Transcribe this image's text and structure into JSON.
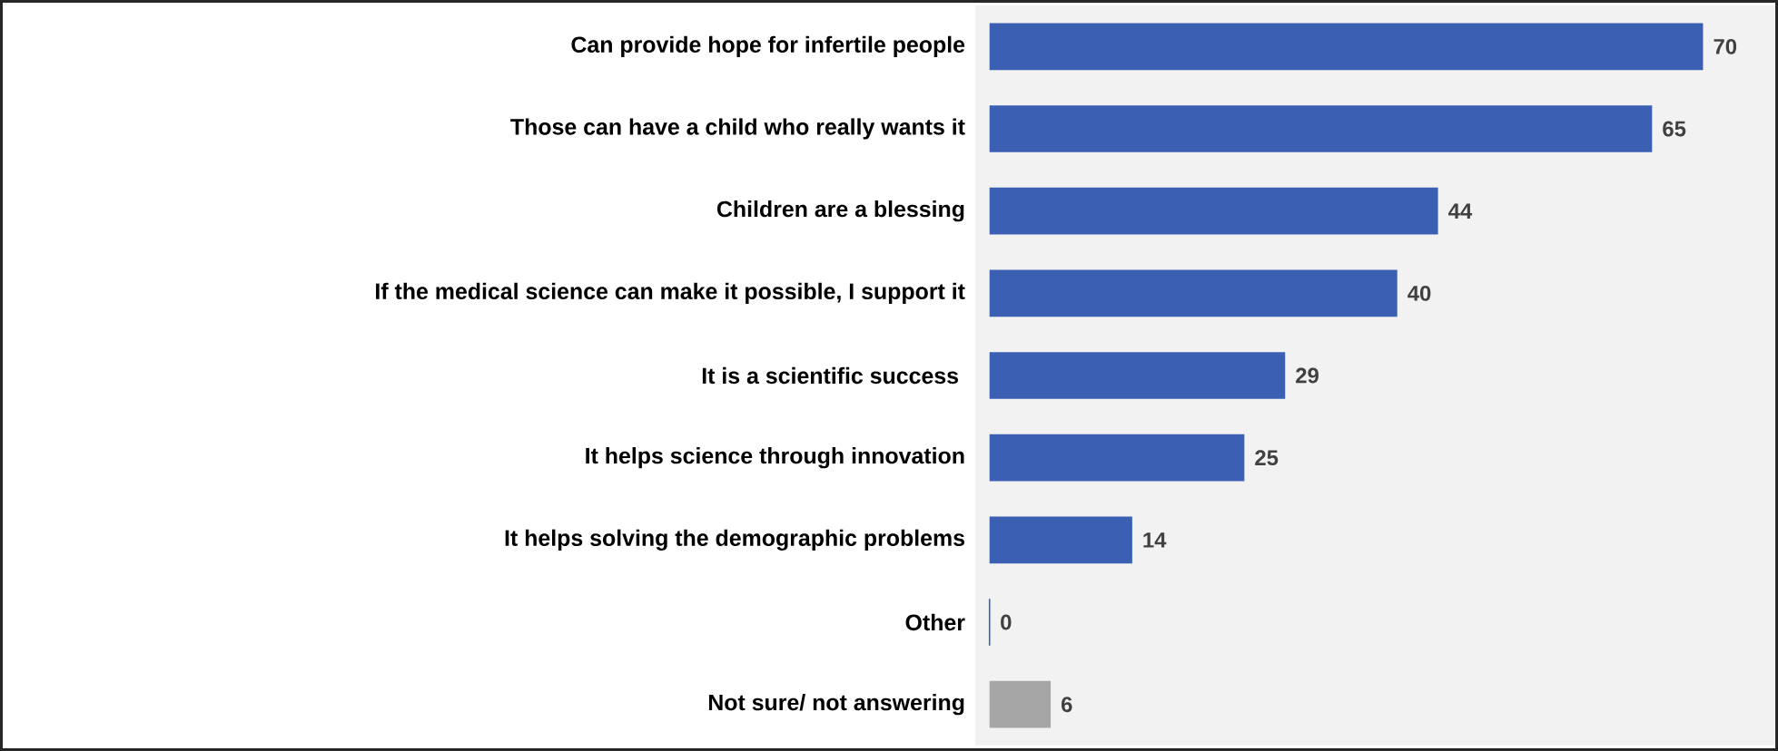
{
  "chart_data": {
    "type": "bar",
    "orientation": "horizontal",
    "data_labels": true,
    "categories": [
      "Can provide hope for infertile people",
      "Those can have a child who really wants it",
      "Children are a blessing",
      "If the medical science can make it possible, I support it",
      "It is a scientific success ",
      "It helps science through innovation",
      "It helps solving the demographic problems",
      "Other",
      "Not sure/ not answering"
    ],
    "values": [
      70,
      65,
      44,
      40,
      29,
      25,
      14,
      0,
      6
    ],
    "colors": [
      "#3a5fb3",
      "#3a5fb3",
      "#3a5fb3",
      "#3a5fb3",
      "#3a5fb3",
      "#3a5fb3",
      "#3a5fb3",
      "#3a5fb3",
      "#a6a6a6"
    ]
  }
}
